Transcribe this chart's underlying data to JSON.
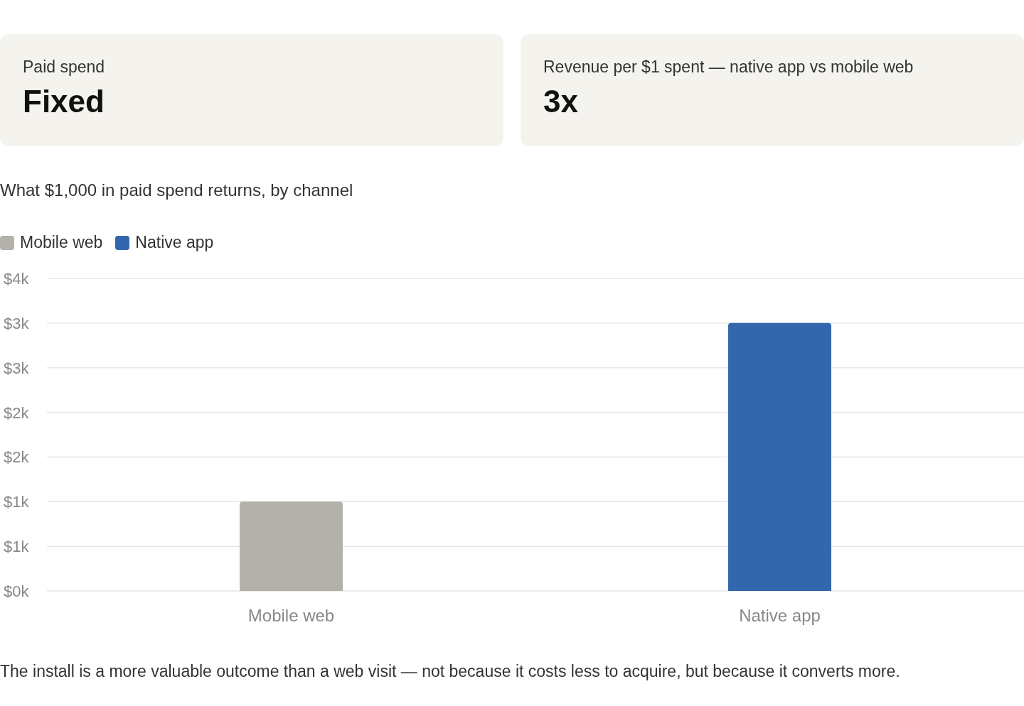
{
  "chart_data": [
    {
      "type": "other",
      "title": "Paid spend",
      "annotations": [
        "Fixed"
      ]
    },
    {
      "type": "other",
      "title": "Revenue per $1 spent — native app vs mobile web",
      "annotations": [
        "3x"
      ]
    },
    {
      "type": "bar",
      "title": "What $1,000 in paid spend returns, by channel",
      "categories": [
        "Mobile web",
        "Native app"
      ],
      "stacked": true,
      "series": [
        {
          "name": "Mobile web",
          "color": "#b3b1aa",
          "values": [
            1000,
            null
          ]
        },
        {
          "name": "Native app",
          "color": "#3366ad",
          "values": [
            null,
            3000
          ]
        }
      ],
      "ylim": [
        0,
        3500
      ],
      "yticks": [
        {
          "value": 0,
          "label": "$0k"
        },
        {
          "value": 500,
          "label": "$1k"
        },
        {
          "value": 1000,
          "label": "$1k"
        },
        {
          "value": 1500,
          "label": "$2k"
        },
        {
          "value": 2000,
          "label": "$2k"
        },
        {
          "value": 2500,
          "label": "$3k"
        },
        {
          "value": 3000,
          "label": "$3k"
        },
        {
          "value": 3500,
          "label": "$4k"
        }
      ],
      "grid": "y",
      "legend": "top left",
      "annotations": [
        "The install is a more valuable outcome than a web visit — not because it costs less to acquire, but because it converts more."
      ]
    }
  ]
}
